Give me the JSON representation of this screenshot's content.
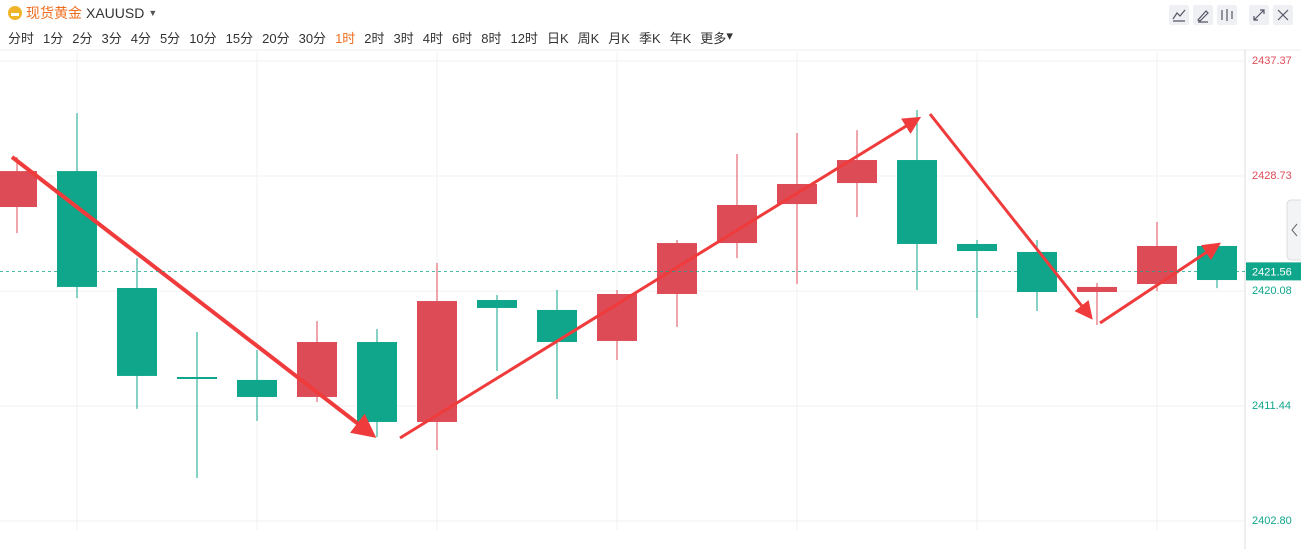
{
  "header": {
    "name": "现货黄金",
    "symbol": "XAUUSD",
    "periods": [
      {
        "label": "分时",
        "active": false
      },
      {
        "label": "1分",
        "active": false
      },
      {
        "label": "2分",
        "active": false
      },
      {
        "label": "3分",
        "active": false
      },
      {
        "label": "4分",
        "active": false
      },
      {
        "label": "5分",
        "active": false
      },
      {
        "label": "10分",
        "active": false
      },
      {
        "label": "15分",
        "active": false
      },
      {
        "label": "20分",
        "active": false
      },
      {
        "label": "30分",
        "active": false
      },
      {
        "label": "1时",
        "active": true
      },
      {
        "label": "2时",
        "active": false
      },
      {
        "label": "3时",
        "active": false
      },
      {
        "label": "4时",
        "active": false
      },
      {
        "label": "6时",
        "active": false
      },
      {
        "label": "8时",
        "active": false
      },
      {
        "label": "12时",
        "active": false
      },
      {
        "label": "日K",
        "active": false
      },
      {
        "label": "周K",
        "active": false
      },
      {
        "label": "月K",
        "active": false
      },
      {
        "label": "季K",
        "active": false
      },
      {
        "label": "年K",
        "active": false
      },
      {
        "label": "更多",
        "active": false
      }
    ]
  },
  "chart_data": {
    "type": "candlestick",
    "up_color": "#dd4b57",
    "down_color": "#0fa68b",
    "open": [
      2426.4,
      2429.1,
      2420.31,
      2413.62,
      2413.4,
      2412.12,
      2416.25,
      2410.24,
      2419.41,
      2418.66,
      2416.33,
      2419.86,
      2423.69,
      2426.62,
      2428.2,
      2429.93,
      2423.62,
      2423.02,
      2420.01,
      2420.61,
      2423.47
    ],
    "high": [
      2430.16,
      2433.46,
      2422.56,
      2417.0,
      2415.65,
      2417.83,
      2417.23,
      2422.19,
      2419.78,
      2420.16,
      2420.16,
      2423.92,
      2430.38,
      2431.96,
      2432.18,
      2433.69,
      2423.92,
      2423.92,
      2420.69,
      2425.27,
      2423.47
    ],
    "low": [
      2424.44,
      2419.56,
      2411.22,
      2406.03,
      2410.31,
      2411.74,
      2409.11,
      2408.13,
      2414.07,
      2411.97,
      2414.9,
      2417.38,
      2422.56,
      2420.61,
      2425.65,
      2420.16,
      2418.06,
      2418.58,
      2417.53,
      2420.08,
      2420.3
    ],
    "close": [
      2429.1,
      2420.39,
      2413.7,
      2413.47,
      2412.12,
      2416.25,
      2410.24,
      2419.33,
      2418.81,
      2416.25,
      2419.86,
      2423.69,
      2426.55,
      2428.13,
      2429.93,
      2423.62,
      2423.09,
      2420.01,
      2420.39,
      2423.47,
      2420.91
    ],
    "ylim": [
      2402.12,
      2438.05
    ],
    "yticks": [
      2437.37,
      2428.73,
      2420.08,
      2411.44,
      {
        "value": 2402.8,
        "label": "2402.80"
      }
    ],
    "last_price": 2421.56,
    "grid": true
  }
}
